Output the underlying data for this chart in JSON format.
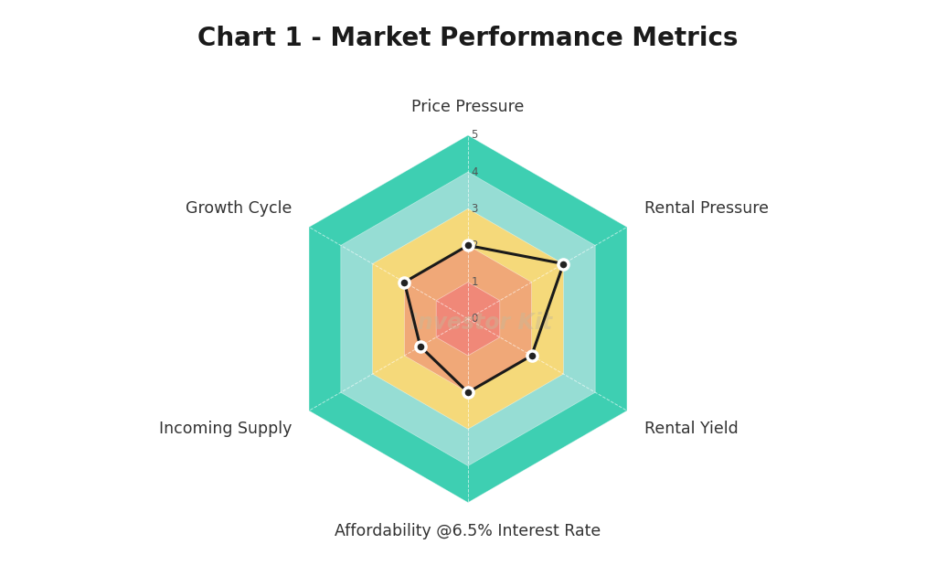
{
  "title": "Chart 1 - Market Performance Metrics",
  "categories": [
    "Price Pressure",
    "Rental Pressure",
    "Rental Yield",
    "Affordability @6.5% Interest Rate",
    "Incoming Supply",
    "Growth Cycle"
  ],
  "values": [
    2,
    3,
    2,
    2,
    1.5,
    2
  ],
  "max_val": 5,
  "ring_colors": [
    "#3ecfb2",
    "#96ddd4",
    "#f5d97a",
    "#f0a878",
    "#f08878"
  ],
  "line_color": "#1a1a1a",
  "marker_color": "#222222",
  "marker_edge_color": "#ffffff",
  "title_fontsize": 20,
  "label_fontsize": 12.5,
  "tick_fontsize": 8.5,
  "background_color": "#ffffff",
  "watermark_text": "Investor Kit",
  "watermark_color": "#c8b898",
  "watermark_alpha": 0.45
}
